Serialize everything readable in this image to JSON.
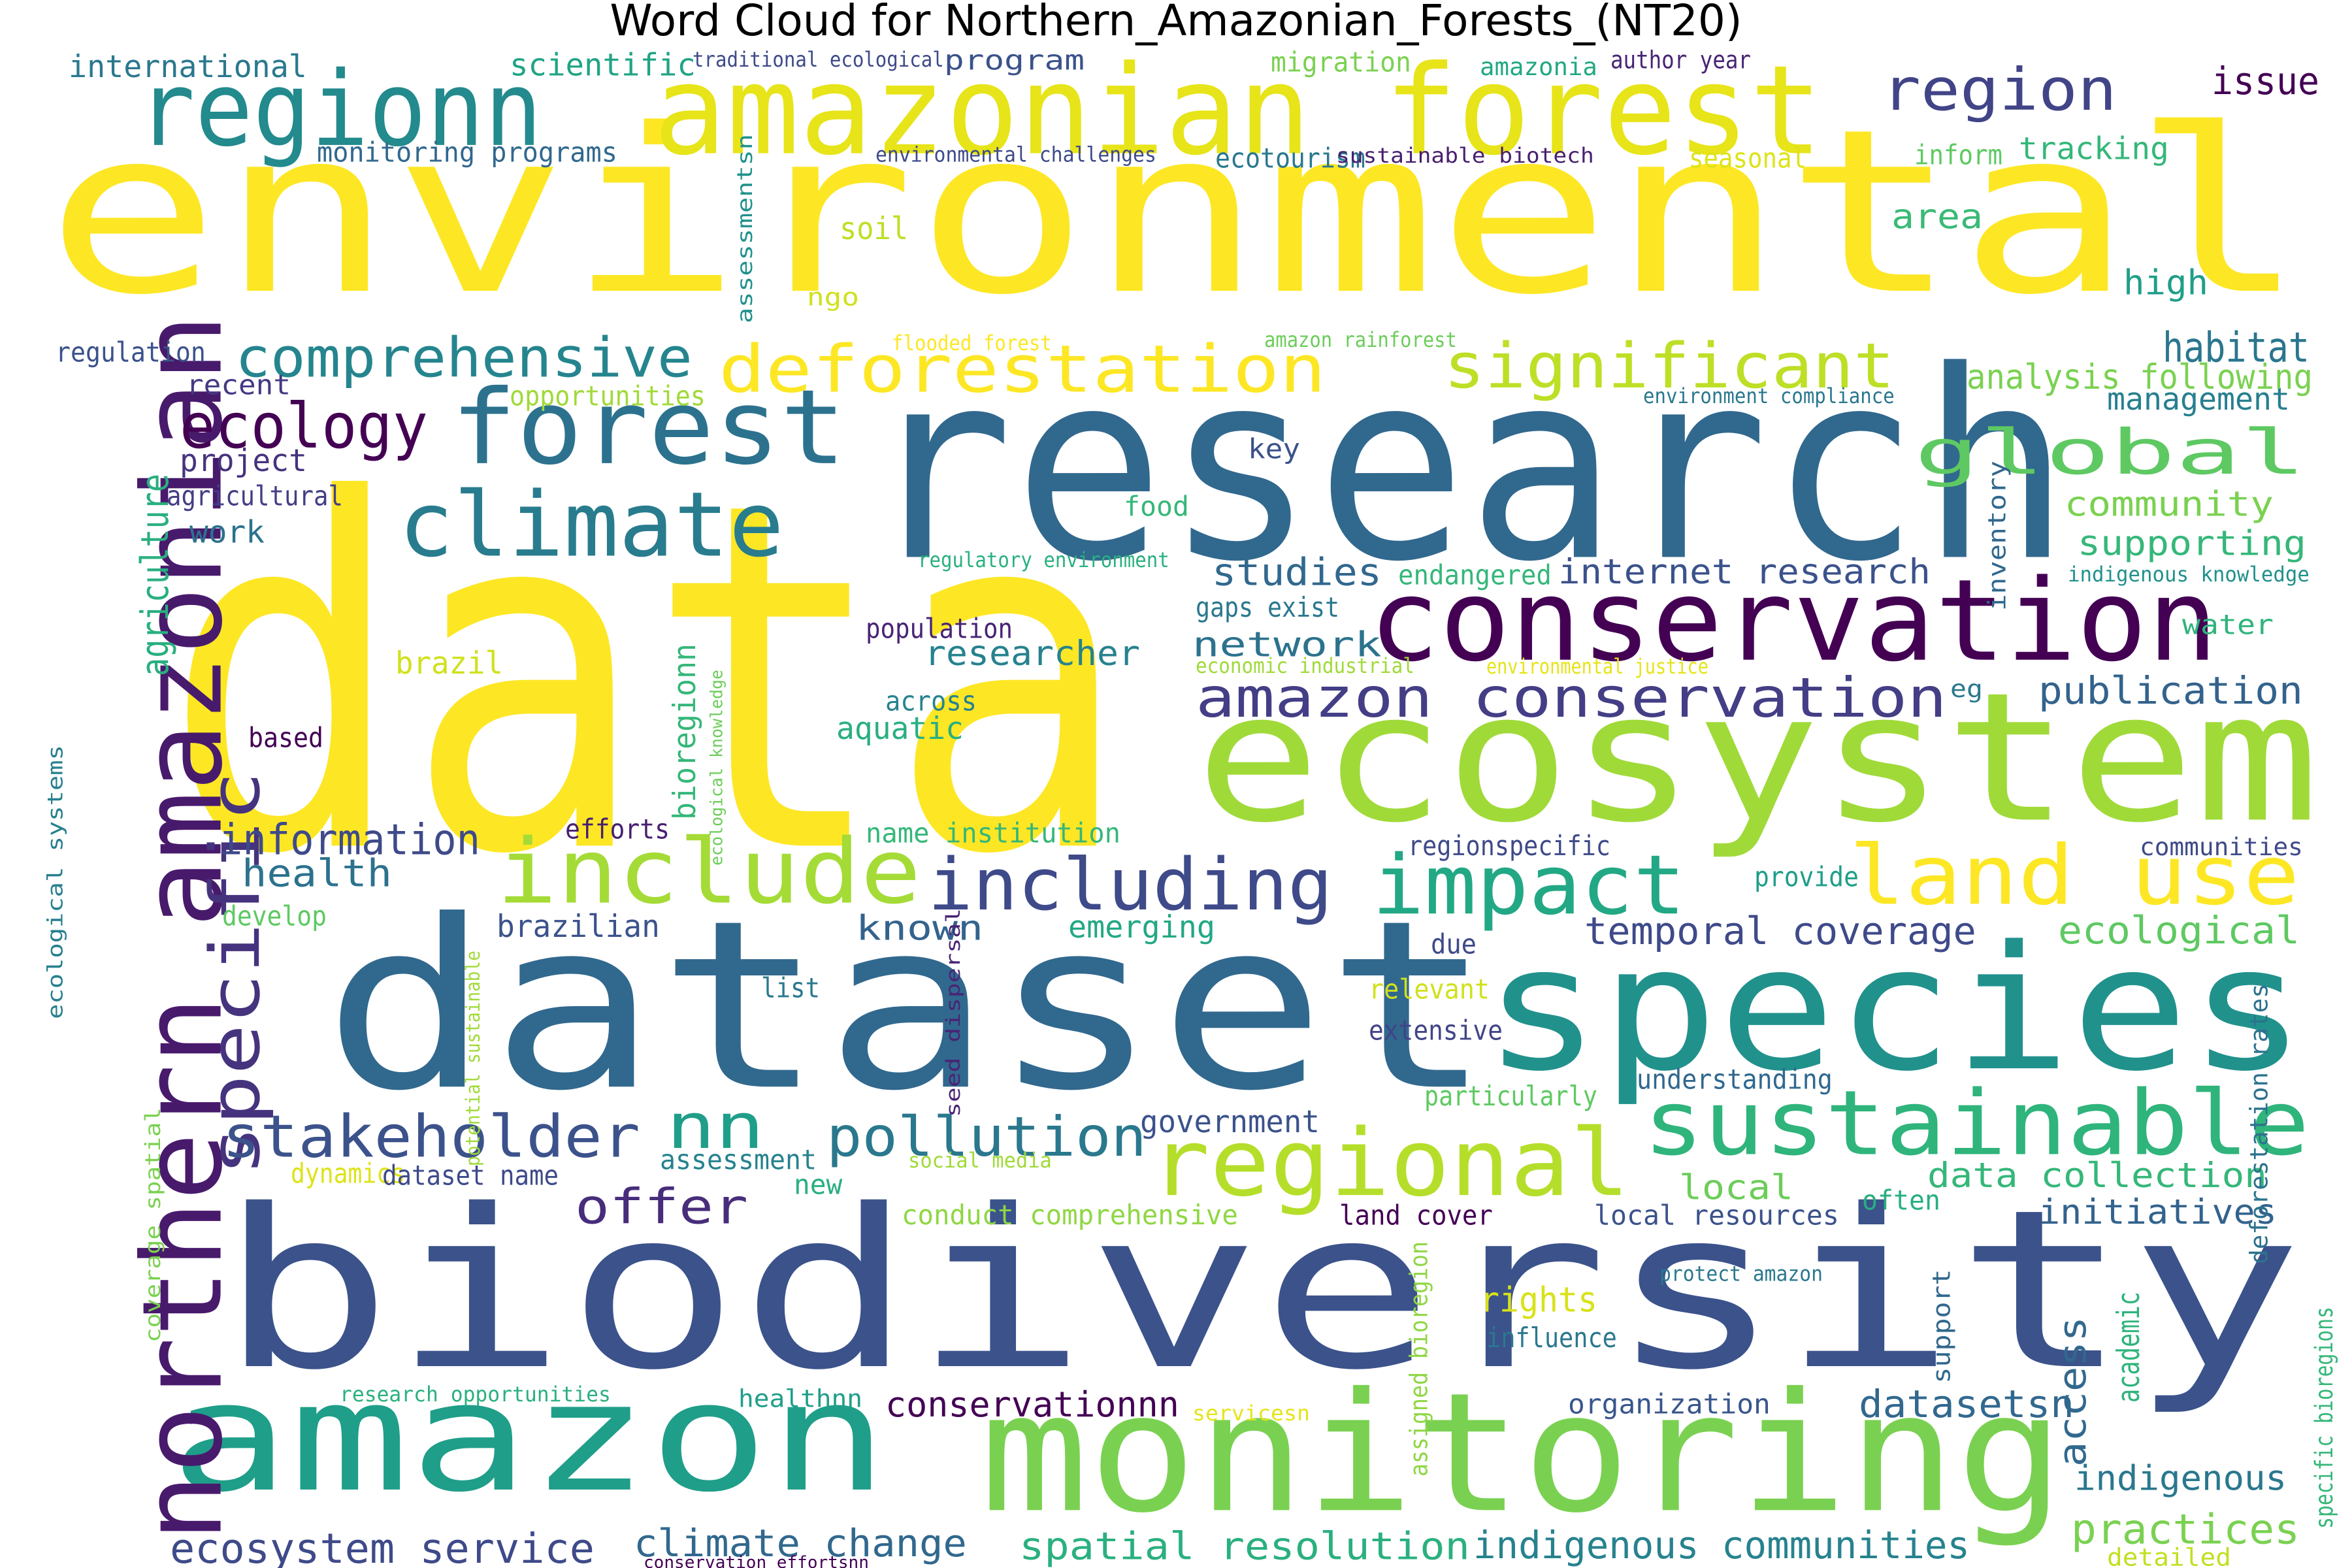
{
  "title": "Word Cloud for Northern_Amazonian_Forests_(NT20)",
  "words": [
    {
      "text": "environmental",
      "color": "#fde725"
    },
    {
      "text": "data",
      "color": "#fde725"
    },
    {
      "text": "research",
      "color": "#31688e"
    },
    {
      "text": "biodiversity",
      "color": "#3b528b"
    },
    {
      "text": "dataset",
      "color": "#31688e"
    },
    {
      "text": "ecosystem",
      "color": "#a0da39"
    },
    {
      "text": "amazonian forest",
      "color": "#e7e419"
    },
    {
      "text": "species",
      "color": "#21918c"
    },
    {
      "text": "amazon",
      "color": "#1f9e89"
    },
    {
      "text": "monitoring",
      "color": "#7ad151"
    },
    {
      "text": "conservation",
      "color": "#440154"
    },
    {
      "text": "northern amazonian",
      "color": "#481a6c"
    },
    {
      "text": "regionn",
      "color": "#238a8d"
    },
    {
      "text": "forest",
      "color": "#2c728e"
    },
    {
      "text": "climate",
      "color": "#287c8e"
    },
    {
      "text": "regional",
      "color": "#b5de2b"
    },
    {
      "text": "sustainable",
      "color": "#2fb47c"
    },
    {
      "text": "include",
      "color": "#a5db36"
    },
    {
      "text": "impact",
      "color": "#22a884"
    },
    {
      "text": "land use",
      "color": "#fde725"
    },
    {
      "text": "including",
      "color": "#3e4a89"
    },
    {
      "text": "specific",
      "color": "#46337e"
    },
    {
      "text": "deforestation",
      "color": "#fde725"
    },
    {
      "text": "significant",
      "color": "#bddf26"
    },
    {
      "text": "comprehensive",
      "color": "#25858e"
    },
    {
      "text": "amazon conservation",
      "color": "#433e85"
    },
    {
      "text": "stakeholder",
      "color": "#3b528b"
    },
    {
      "text": "pollution",
      "color": "#2a788e"
    },
    {
      "text": "global",
      "color": "#5ec962"
    },
    {
      "text": "region",
      "color": "#414487"
    },
    {
      "text": "ecology",
      "color": "#440154"
    },
    {
      "text": "nn",
      "color": "#1f9e89"
    },
    {
      "text": "offer",
      "color": "#472d7b"
    },
    {
      "text": "agriculture",
      "color": "#29af7f"
    },
    {
      "text": "issue",
      "color": "#440154"
    },
    {
      "text": "habitat",
      "color": "#2a768e"
    },
    {
      "text": "information",
      "color": "#3e4a89"
    },
    {
      "text": "health",
      "color": "#2c728e"
    },
    {
      "text": "studies",
      "color": "#31688e"
    },
    {
      "text": "internet research",
      "color": "#3b528b"
    },
    {
      "text": "researcher",
      "color": "#26828e"
    },
    {
      "text": "network",
      "color": "#2c728e"
    },
    {
      "text": "publication",
      "color": "#33638d"
    },
    {
      "text": "temporal coverage",
      "color": "#3e4a89"
    },
    {
      "text": "ecological",
      "color": "#5ec962"
    },
    {
      "text": "ecosystem service",
      "color": "#3e4a89"
    },
    {
      "text": "climate change",
      "color": "#31688e"
    },
    {
      "text": "spatial resolution",
      "color": "#2ab07f"
    },
    {
      "text": "indigenous communities",
      "color": "#26828e"
    },
    {
      "text": "practices",
      "color": "#7ad151"
    },
    {
      "text": "conservationnn",
      "color": "#440154"
    },
    {
      "text": "datasetsn",
      "color": "#31688e"
    },
    {
      "text": "indigenous",
      "color": "#2a788e"
    },
    {
      "text": "data collection",
      "color": "#35b779"
    },
    {
      "text": "initiatives",
      "color": "#33638d"
    },
    {
      "text": "local",
      "color": "#6ccd5a"
    },
    {
      "text": "rights",
      "color": "#d8e219"
    },
    {
      "text": "academic",
      "color": "#2fb47c"
    },
    {
      "text": "access",
      "color": "#31688e"
    },
    {
      "text": "supporting",
      "color": "#35b779"
    },
    {
      "text": "community",
      "color": "#7ad151"
    },
    {
      "text": "management",
      "color": "#277f8e"
    },
    {
      "text": "analysis following",
      "color": "#7ad151"
    },
    {
      "text": "high",
      "color": "#1f9e89"
    },
    {
      "text": "area",
      "color": "#3aba76"
    },
    {
      "text": "tracking",
      "color": "#35b779"
    },
    {
      "text": "international",
      "color": "#2a788e"
    },
    {
      "text": "scientific",
      "color": "#20a486"
    },
    {
      "text": "monitoring programs",
      "color": "#31688e"
    },
    {
      "text": "traditional ecological",
      "color": "#3e4a89"
    },
    {
      "text": "program",
      "color": "#3b528b"
    },
    {
      "text": "migration",
      "color": "#7ad151"
    },
    {
      "text": "amazonia",
      "color": "#22a884"
    },
    {
      "text": "author year",
      "color": "#482475"
    },
    {
      "text": "environmental challenges",
      "color": "#3e4a89"
    },
    {
      "text": "ecotourism",
      "color": "#2a788e"
    },
    {
      "text": "sustainable biotech",
      "color": "#481f70"
    },
    {
      "text": "seasonal",
      "color": "#dde318"
    },
    {
      "text": "inform",
      "color": "#5ec962"
    },
    {
      "text": "soil",
      "color": "#bddf26"
    },
    {
      "text": "ngo",
      "color": "#d0e11c"
    },
    {
      "text": "assessmentsn",
      "color": "#21918c"
    },
    {
      "text": "flooded forest",
      "color": "#fde725"
    },
    {
      "text": "amazon rainforest",
      "color": "#6ccd5a"
    },
    {
      "text": "environment compliance",
      "color": "#2a788e"
    },
    {
      "text": "regulation",
      "color": "#3b528b"
    },
    {
      "text": "recent",
      "color": "#443983"
    },
    {
      "text": "opportunities",
      "color": "#a0da39"
    },
    {
      "text": "project",
      "color": "#46337e"
    },
    {
      "text": "agricultural",
      "color": "#433e85"
    },
    {
      "text": "work",
      "color": "#2c728e"
    },
    {
      "text": "key",
      "color": "#3b528b"
    },
    {
      "text": "food",
      "color": "#35b779"
    },
    {
      "text": "regulatory environment",
      "color": "#2ab07f"
    },
    {
      "text": "endangered",
      "color": "#35b779"
    },
    {
      "text": "gaps exist",
      "color": "#2a788e"
    },
    {
      "text": "inventory",
      "color": "#31688e"
    },
    {
      "text": "indigenous knowledge",
      "color": "#21918c"
    },
    {
      "text": "water",
      "color": "#2fb47c"
    },
    {
      "text": "population",
      "color": "#482475"
    },
    {
      "text": "brazil",
      "color": "#d0e11c"
    },
    {
      "text": "bioregionn",
      "color": "#35b779"
    },
    {
      "text": "ecological knowledge",
      "color": "#6ccd5a"
    },
    {
      "text": "economic industrial",
      "color": "#a0da39"
    },
    {
      "text": "environmental justice",
      "color": "#e5e419"
    },
    {
      "text": "eg",
      "color": "#2a788e"
    },
    {
      "text": "based",
      "color": "#440154"
    },
    {
      "text": "across",
      "color": "#26828e"
    },
    {
      "text": "aquatic",
      "color": "#29af7f"
    },
    {
      "text": "efforts",
      "color": "#481f70"
    },
    {
      "text": "name institution",
      "color": "#35b779"
    },
    {
      "text": "regionspecific",
      "color": "#3e4a89"
    },
    {
      "text": "communities",
      "color": "#3e4a89"
    },
    {
      "text": "provide",
      "color": "#1f9e89"
    },
    {
      "text": "ecological systems",
      "color": "#277f8e"
    },
    {
      "text": "brazilian",
      "color": "#3b528b"
    },
    {
      "text": "develop",
      "color": "#5ec962"
    },
    {
      "text": "known",
      "color": "#33638d"
    },
    {
      "text": "emerging",
      "color": "#22a884"
    },
    {
      "text": "potential sustainable",
      "color": "#a0da39"
    },
    {
      "text": "seed dispersal",
      "color": "#482475"
    },
    {
      "text": "list",
      "color": "#2a788e"
    },
    {
      "text": "due",
      "color": "#3e4a89"
    },
    {
      "text": "relevant",
      "color": "#d0e11c"
    },
    {
      "text": "extensive",
      "color": "#414487"
    },
    {
      "text": "particularly",
      "color": "#5ec962"
    },
    {
      "text": "understanding",
      "color": "#31688e"
    },
    {
      "text": "deforestation rates",
      "color": "#2c728e"
    },
    {
      "text": "government",
      "color": "#3b528b"
    },
    {
      "text": "coverage spatial",
      "color": "#7ad151"
    },
    {
      "text": "dynamics",
      "color": "#dde318"
    },
    {
      "text": "assessment",
      "color": "#26828e"
    },
    {
      "text": "social media",
      "color": "#a0da39"
    },
    {
      "text": "new",
      "color": "#29af7f"
    },
    {
      "text": "dataset name",
      "color": "#3e4a89"
    },
    {
      "text": "conduct comprehensive",
      "color": "#8fd744"
    },
    {
      "text": "land cover",
      "color": "#440154"
    },
    {
      "text": "local resources",
      "color": "#3b528b"
    },
    {
      "text": "often",
      "color": "#29af7f"
    },
    {
      "text": "assigned bioregion",
      "color": "#8fd744"
    },
    {
      "text": "protect amazon",
      "color": "#2a788e"
    },
    {
      "text": "support",
      "color": "#31688e"
    },
    {
      "text": "specific bioregions",
      "color": "#35b779"
    },
    {
      "text": "influence",
      "color": "#2a788e"
    },
    {
      "text": "research opportunities",
      "color": "#2ab07f"
    },
    {
      "text": "healthnn",
      "color": "#1f9e89"
    },
    {
      "text": "servicesn",
      "color": "#e5e419"
    },
    {
      "text": "organization",
      "color": "#39568c"
    },
    {
      "text": "conservation effortsnn",
      "color": "#440154"
    },
    {
      "text": "detailed",
      "color": "#c2df23"
    }
  ]
}
